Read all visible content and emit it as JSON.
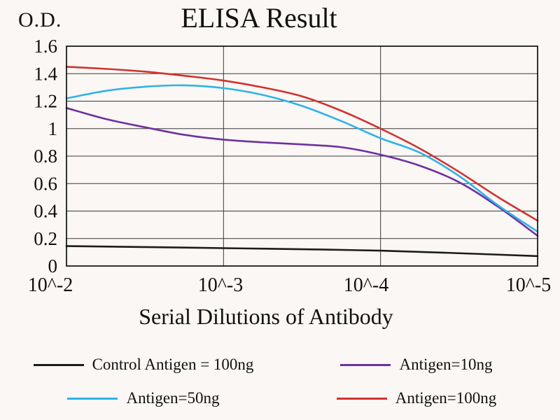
{
  "chart_data": {
    "type": "line",
    "title": "ELISA Result",
    "ylabel": "O.D.",
    "xlabel": "Serial Dilutions of Antibody",
    "x_tick_labels": [
      "10^-2",
      "10^-3",
      "10^-4",
      "10^-5"
    ],
    "y_tick_labels": [
      "0",
      "0.2",
      "0.4",
      "0.6",
      "0.8",
      "1",
      "1.2",
      "1.4",
      "1.6"
    ],
    "ylim": [
      0,
      1.6
    ],
    "y_grid_step": 0.2,
    "x_range": [
      0,
      3
    ],
    "grid": true,
    "legend_position": "bottom",
    "series": [
      {
        "name": "Control Antigen = 100ng",
        "color": "#1c1c1c",
        "points": [
          [
            0,
            0.145
          ],
          [
            0.5,
            0.138
          ],
          [
            1,
            0.13
          ],
          [
            1.5,
            0.122
          ],
          [
            2,
            0.112
          ],
          [
            2.5,
            0.093
          ],
          [
            3,
            0.072
          ]
        ]
      },
      {
        "name": "Antigen=10ng",
        "color": "#7030a0",
        "points": [
          [
            0,
            1.15
          ],
          [
            0.25,
            1.07
          ],
          [
            0.5,
            1.01
          ],
          [
            0.75,
            0.955
          ],
          [
            1,
            0.92
          ],
          [
            1.25,
            0.9
          ],
          [
            1.5,
            0.885
          ],
          [
            1.75,
            0.865
          ],
          [
            2,
            0.81
          ],
          [
            2.25,
            0.73
          ],
          [
            2.5,
            0.61
          ],
          [
            2.75,
            0.43
          ],
          [
            3,
            0.22
          ]
        ]
      },
      {
        "name": "Antigen=50ng",
        "color": "#2eb3e8",
        "points": [
          [
            0,
            1.22
          ],
          [
            0.25,
            1.275
          ],
          [
            0.5,
            1.305
          ],
          [
            0.75,
            1.315
          ],
          [
            1,
            1.295
          ],
          [
            1.25,
            1.245
          ],
          [
            1.5,
            1.165
          ],
          [
            1.75,
            1.055
          ],
          [
            2,
            0.93
          ],
          [
            2.25,
            0.825
          ],
          [
            2.5,
            0.655
          ],
          [
            2.75,
            0.44
          ],
          [
            3,
            0.25
          ]
        ]
      },
      {
        "name": "Antigen=100ng",
        "color": "#d03330",
        "points": [
          [
            0,
            1.45
          ],
          [
            0.25,
            1.435
          ],
          [
            0.5,
            1.415
          ],
          [
            0.75,
            1.385
          ],
          [
            1,
            1.35
          ],
          [
            1.25,
            1.3
          ],
          [
            1.5,
            1.235
          ],
          [
            1.75,
            1.13
          ],
          [
            2,
            1.0
          ],
          [
            2.25,
            0.855
          ],
          [
            2.5,
            0.685
          ],
          [
            2.75,
            0.5
          ],
          [
            3,
            0.33
          ]
        ]
      }
    ]
  }
}
